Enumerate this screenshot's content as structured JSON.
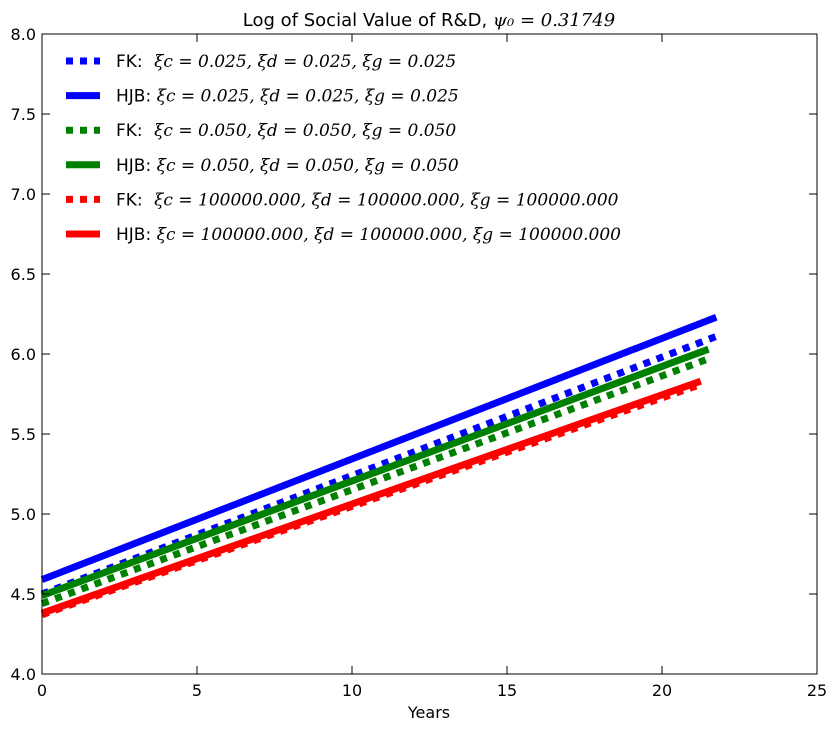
{
  "chart_data": {
    "type": "line",
    "title": "Log of Social Value of R&D, ψ₀ = 0.31749",
    "xlabel": "Years",
    "ylabel": "",
    "xlim": [
      0,
      25
    ],
    "ylim": [
      4.0,
      8.0
    ],
    "xticks": [
      0,
      5,
      10,
      15,
      20,
      25
    ],
    "yticks": [
      4.0,
      4.5,
      5.0,
      5.5,
      6.0,
      6.5,
      7.0,
      7.5,
      8.0
    ],
    "xtick_labels": [
      "0",
      "5",
      "10",
      "15",
      "20",
      "25"
    ],
    "ytick_labels": [
      "4.0",
      "4.5",
      "5.0",
      "5.5",
      "6.0",
      "6.5",
      "7.0",
      "7.5",
      "8.0"
    ],
    "grid": false,
    "legend_position": "top-left",
    "series": [
      {
        "name": "FK:  ξc = 0.025, ξd = 0.025, ξg = 0.025",
        "color": "#0000ff",
        "style": "dotted",
        "x": [
          0,
          21.75
        ],
        "y": [
          4.5,
          6.11
        ]
      },
      {
        "name": "HJB: ξc = 0.025, ξd = 0.025, ξg = 0.025",
        "color": "#0000ff",
        "style": "solid",
        "x": [
          0,
          21.75
        ],
        "y": [
          4.59,
          6.23
        ]
      },
      {
        "name": "FK:  ξc = 0.050, ξd = 0.050, ξg = 0.050",
        "color": "#008000",
        "style": "dotted",
        "x": [
          0,
          21.5
        ],
        "y": [
          4.44,
          5.97
        ]
      },
      {
        "name": "HJB: ξc = 0.050, ξd = 0.050, ξg = 0.050",
        "color": "#008000",
        "style": "solid",
        "x": [
          0,
          21.5
        ],
        "y": [
          4.49,
          6.03
        ]
      },
      {
        "name": "FK:  ξc = 100000.000, ξd = 100000.000, ξg = 100000.000",
        "color": "#ff0000",
        "style": "dotted",
        "x": [
          0,
          21.25
        ],
        "y": [
          4.37,
          5.81
        ]
      },
      {
        "name": "HJB: ξc = 100000.000, ξd = 100000.000, ξg = 100000.000",
        "color": "#ff0000",
        "style": "solid",
        "x": [
          0,
          21.25
        ],
        "y": [
          4.38,
          5.83
        ]
      }
    ]
  }
}
